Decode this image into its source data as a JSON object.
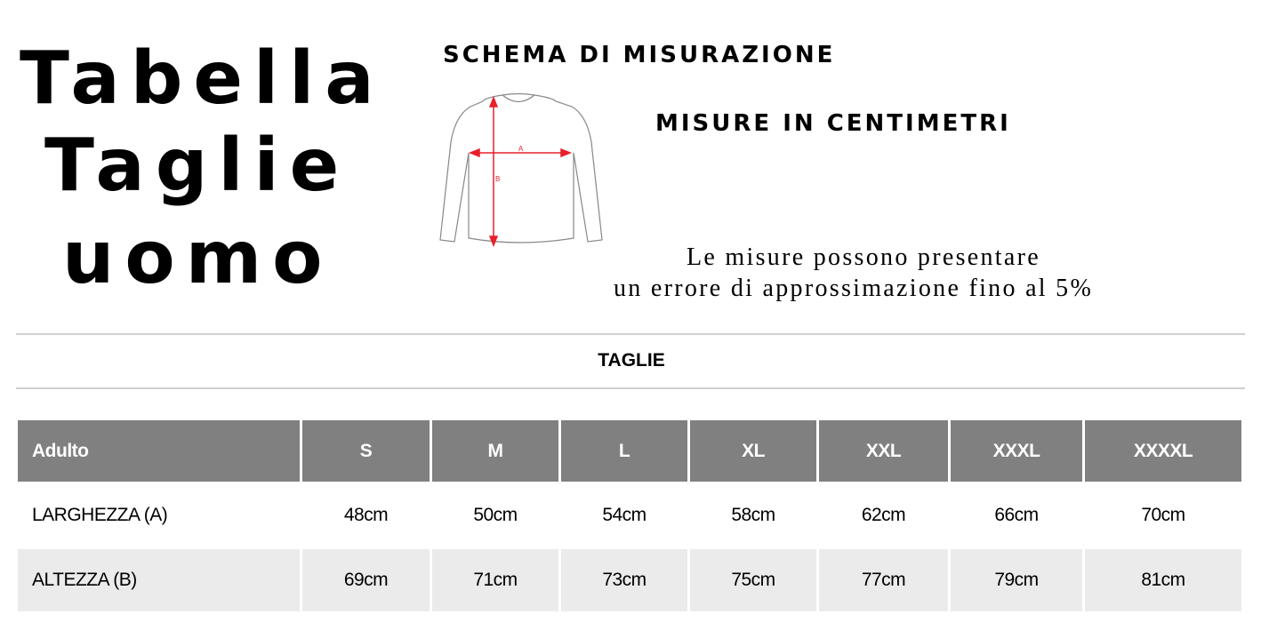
{
  "title": {
    "line1": "Tabella",
    "line2": "Taglie",
    "line3": "uomo"
  },
  "schema_label": "schema di misurazione",
  "units_label": "misure in centimetri",
  "diagram": {
    "label_a": "A",
    "label_b": "B",
    "arrow_color": "#e8202a"
  },
  "note": {
    "line1": "Le misure possono presentare",
    "line2": "un errore di approssimazione fino al 5%"
  },
  "section_title": "TAGLIE",
  "table": {
    "header_color": "#808080",
    "headers": [
      "Adulto",
      "S",
      "M",
      "L",
      "XL",
      "XXL",
      "XXXL",
      "XXXXL"
    ],
    "rows": [
      {
        "label": "LARGHEZZA (A)",
        "values": [
          "48cm",
          "50cm",
          "54cm",
          "58cm",
          "62cm",
          "66cm",
          "70cm"
        ]
      },
      {
        "label": "ALTEZZA (B)",
        "values": [
          "69cm",
          "71cm",
          "73cm",
          "75cm",
          "77cm",
          "79cm",
          "81cm"
        ]
      }
    ]
  }
}
